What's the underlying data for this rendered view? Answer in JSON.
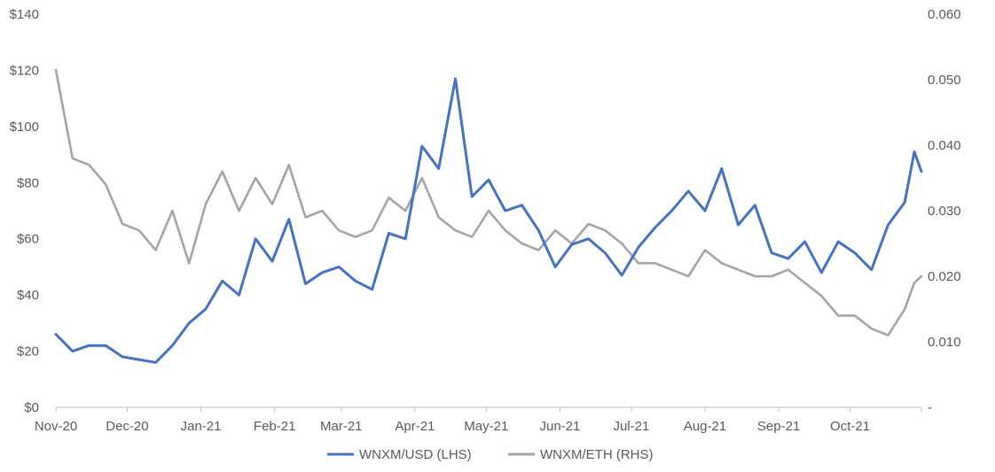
{
  "chart_data": {
    "type": "line",
    "title": "",
    "x": [
      "2020-11-01",
      "2020-11-08",
      "2020-11-15",
      "2020-11-22",
      "2020-11-29",
      "2020-12-06",
      "2020-12-13",
      "2020-12-20",
      "2020-12-27",
      "2021-01-03",
      "2021-01-10",
      "2021-01-17",
      "2021-01-24",
      "2021-01-31",
      "2021-02-07",
      "2021-02-14",
      "2021-02-21",
      "2021-02-28",
      "2021-03-07",
      "2021-03-14",
      "2021-03-21",
      "2021-03-28",
      "2021-04-04",
      "2021-04-11",
      "2021-04-18",
      "2021-04-25",
      "2021-05-02",
      "2021-05-09",
      "2021-05-16",
      "2021-05-23",
      "2021-05-30",
      "2021-06-06",
      "2021-06-13",
      "2021-06-20",
      "2021-06-27",
      "2021-07-04",
      "2021-07-11",
      "2021-07-18",
      "2021-07-25",
      "2021-08-01",
      "2021-08-08",
      "2021-08-15",
      "2021-08-22",
      "2021-08-29",
      "2021-09-05",
      "2021-09-12",
      "2021-09-19",
      "2021-09-26",
      "2021-10-03",
      "2021-10-10",
      "2021-10-17",
      "2021-10-24",
      "2021-10-28",
      "2021-10-31"
    ],
    "xlabel": "",
    "x_tick_labels": [
      "Nov-20",
      "Dec-20",
      "Jan-21",
      "Feb-21",
      "Mar-21",
      "Apr-21",
      "May-21",
      "Jun-21",
      "Jul-21",
      "Aug-21",
      "Sep-21",
      "Oct-21"
    ],
    "x_tick_dates": [
      "2020-11-01",
      "2020-12-01",
      "2021-01-01",
      "2021-02-01",
      "2021-03-01",
      "2021-04-01",
      "2021-05-01",
      "2021-06-01",
      "2021-07-01",
      "2021-08-01",
      "2021-09-01",
      "2021-10-01"
    ],
    "y_left": {
      "ylabel": "",
      "ylim": [
        0,
        140
      ],
      "ticks": [
        "$0",
        "$20",
        "$40",
        "$60",
        "$80",
        "$100",
        "$120",
        "$140"
      ]
    },
    "y_right": {
      "ylabel": "",
      "ylim": [
        0,
        0.06
      ],
      "ticks": [
        "-",
        "0.010",
        "0.020",
        "0.030",
        "0.040",
        "0.050",
        "0.060"
      ]
    },
    "grid": false,
    "legend_position": "bottom",
    "series": [
      {
        "name": "WNXM/USD (LHS)",
        "axis": "left",
        "color": "#4472C4",
        "values": [
          26,
          20,
          22,
          22,
          18,
          17,
          16,
          22,
          30,
          35,
          45,
          40,
          60,
          52,
          67,
          44,
          48,
          50,
          45,
          42,
          62,
          60,
          93,
          85,
          117,
          75,
          81,
          70,
          72,
          63,
          50,
          58,
          60,
          55,
          47,
          57,
          64,
          70,
          77,
          70,
          85,
          65,
          72,
          55,
          53,
          59,
          48,
          59,
          55,
          49,
          65,
          73,
          91,
          84
        ]
      },
      {
        "name": "WNXM/ETH (RHS)",
        "axis": "right",
        "color": "#A5A5A5",
        "values": [
          0.0515,
          0.038,
          0.037,
          0.034,
          0.028,
          0.027,
          0.024,
          0.03,
          0.022,
          0.031,
          0.036,
          0.03,
          0.035,
          0.031,
          0.037,
          0.029,
          0.03,
          0.027,
          0.026,
          0.027,
          0.032,
          0.03,
          0.035,
          0.029,
          0.027,
          0.026,
          0.03,
          0.027,
          0.025,
          0.024,
          0.027,
          0.025,
          0.028,
          0.027,
          0.025,
          0.022,
          0.022,
          0.021,
          0.02,
          0.024,
          0.022,
          0.021,
          0.02,
          0.02,
          0.021,
          0.019,
          0.017,
          0.014,
          0.014,
          0.012,
          0.011,
          0.015,
          0.019,
          0.02
        ]
      }
    ]
  }
}
